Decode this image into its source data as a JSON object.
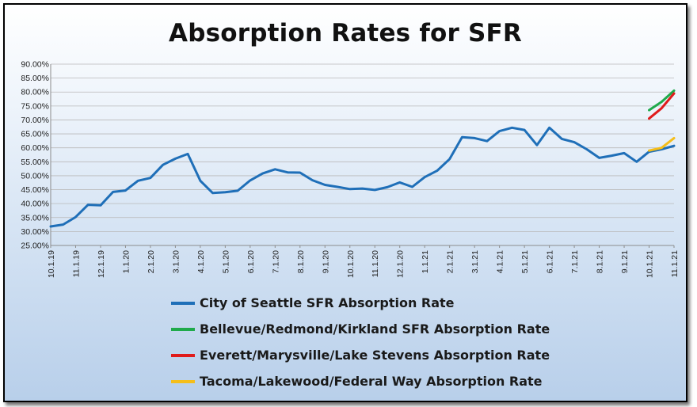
{
  "chart_data": {
    "type": "line",
    "title": "Absorption Rates for SFR",
    "ylim": [
      0.25,
      0.9
    ],
    "y_ticks": [
      "25.00%",
      "30.00%",
      "35.00%",
      "40.00%",
      "45.00%",
      "50.00%",
      "55.00%",
      "60.00%",
      "65.00%",
      "70.00%",
      "75.00%",
      "80.00%",
      "85.00%",
      "90.00%"
    ],
    "x_tick_labels": [
      "10.1.19",
      "11.1.19",
      "12.1.19",
      "1.1.20",
      "2.1.20",
      "3.1.20",
      "4.1.20",
      "5.1.20",
      "6.1.20",
      "7.1.20",
      "8.1.20",
      "9.1.20",
      "10.1.20",
      "11.1.20",
      "12.1.20",
      "1.1.21",
      "2.1.21",
      "3.1.21",
      "4.1.21",
      "5.1.21",
      "6.1.21",
      "7.1.21",
      "8.1.21",
      "9.1.21",
      "10.1.21",
      "11.1.21"
    ],
    "grid": true,
    "legend_position": "bottom",
    "series": [
      {
        "name": "City of Seattle SFR Absorption Rate",
        "color": "#1f6fb8",
        "values": [
          0.318,
          0.325,
          0.352,
          0.396,
          0.394,
          0.442,
          0.447,
          0.482,
          0.492,
          0.539,
          0.561,
          0.578,
          0.482,
          0.438,
          0.441,
          0.446,
          0.483,
          0.508,
          0.523,
          0.512,
          0.511,
          0.484,
          0.467,
          0.46,
          0.452,
          0.454,
          0.449,
          0.459,
          0.476,
          0.46,
          0.495,
          0.518,
          0.56,
          0.638,
          0.635,
          0.624,
          0.66,
          0.672,
          0.664,
          0.61,
          0.672,
          0.632,
          0.62,
          0.595,
          0.564,
          0.572,
          0.581,
          0.55,
          0.586,
          0.595,
          0.607
        ]
      },
      {
        "name": "Bellevue/Redmond/Kirkland SFR Absorption Rate",
        "color": "#1faa4b",
        "values": [
          null,
          null,
          null,
          null,
          null,
          null,
          null,
          null,
          null,
          null,
          null,
          null,
          null,
          null,
          null,
          null,
          null,
          null,
          null,
          null,
          null,
          null,
          null,
          null,
          null,
          null,
          null,
          null,
          null,
          null,
          null,
          null,
          null,
          null,
          null,
          null,
          null,
          null,
          null,
          null,
          null,
          null,
          null,
          null,
          null,
          null,
          null,
          null,
          0.735,
          0.765,
          0.805
        ]
      },
      {
        "name": "Everett/Marysville/Lake Stevens Absorption Rate",
        "color": "#e01b1b",
        "values": [
          null,
          null,
          null,
          null,
          null,
          null,
          null,
          null,
          null,
          null,
          null,
          null,
          null,
          null,
          null,
          null,
          null,
          null,
          null,
          null,
          null,
          null,
          null,
          null,
          null,
          null,
          null,
          null,
          null,
          null,
          null,
          null,
          null,
          null,
          null,
          null,
          null,
          null,
          null,
          null,
          null,
          null,
          null,
          null,
          null,
          null,
          null,
          null,
          0.705,
          0.742,
          0.795
        ]
      },
      {
        "name": "Tacoma/Lakewood/Federal Way Absorption Rate",
        "color": "#f5be1a",
        "values": [
          null,
          null,
          null,
          null,
          null,
          null,
          null,
          null,
          null,
          null,
          null,
          null,
          null,
          null,
          null,
          null,
          null,
          null,
          null,
          null,
          null,
          null,
          null,
          null,
          null,
          null,
          null,
          null,
          null,
          null,
          null,
          null,
          null,
          null,
          null,
          null,
          null,
          null,
          null,
          null,
          null,
          null,
          null,
          null,
          null,
          null,
          null,
          null,
          0.59,
          0.6,
          0.635
        ]
      }
    ]
  }
}
